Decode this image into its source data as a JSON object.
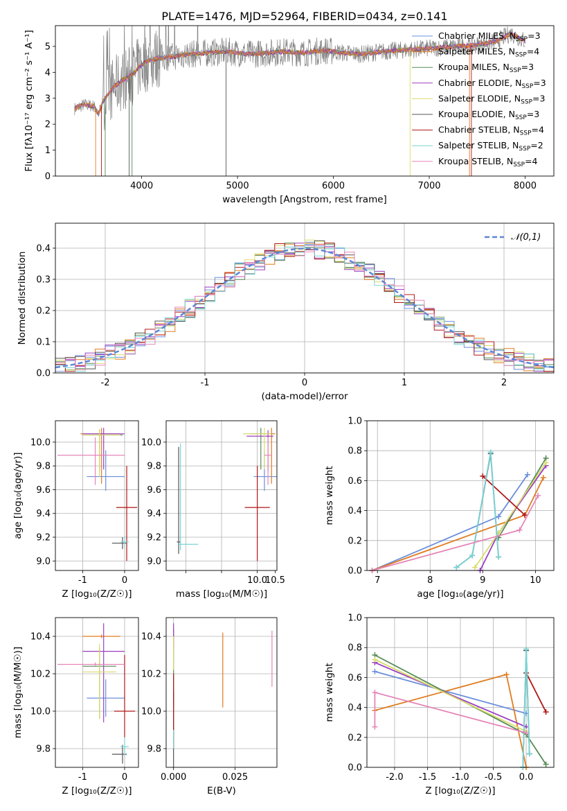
{
  "figure_title": "PLATE=1476, MJD=52964, FIBERID=0434, z=0.141",
  "model_colors": [
    "#6b8fdc",
    "#e07b1e",
    "#558a55",
    "#9b3fc2",
    "#d9dc6a",
    "#555555",
    "#b01515",
    "#79d6d6",
    "#e585b8"
  ],
  "chart_data": [
    {
      "type": "line",
      "id": "spectrum",
      "title": "PLATE=1476, MJD=52964, FIBERID=0434, z=0.141",
      "xlabel": "wavelength [Angstrom, rest frame]",
      "ylabel": "Flux [fλ10⁻¹⁷ erg cm⁻² s⁻¹ A⁻¹]",
      "xlim": [
        3100,
        8300
      ],
      "ylim": [
        0,
        5.8
      ],
      "xticks": [
        4000,
        5000,
        6000,
        7000,
        8000
      ],
      "yticks": [
        0,
        1,
        2,
        3,
        4,
        5
      ],
      "grid": false,
      "legend_position": "top-right",
      "legend": [
        "Chabrier MILES, N_SSP=3",
        "Salpeter MILES, N_SSP=4",
        "Kroupa MILES, N_SSP=3",
        "Chabrier ELODIE, N_SSP=3",
        "Salpeter ELODIE, N_SSP=3",
        "Kroupa ELODIE, N_SSP=3",
        "Chabrier STELIB, N_SSP=4",
        "Salpeter STELIB, N_SSP=2",
        "Kroupa STELIB, N_SSP=4"
      ],
      "legend_colors": [
        "#6b8fdc",
        "#e07b1e",
        "#558a55",
        "#9b3fc2",
        "#d9dc6a",
        "#555555",
        "#b01515",
        "#79d6d6",
        "#e585b8"
      ],
      "model_trend": {
        "x": [
          3300,
          3400,
          3500,
          3550,
          3600,
          3700,
          3800,
          3900,
          4000,
          4100,
          4300,
          4500,
          4700,
          4900,
          5100,
          5300,
          5500,
          5700,
          5900,
          6100,
          6300,
          6500,
          6700,
          6900,
          7100,
          7300,
          7500,
          7700,
          7850,
          8000
        ],
        "y": [
          2.6,
          2.75,
          2.7,
          2.4,
          2.9,
          3.4,
          3.7,
          3.9,
          4.3,
          4.5,
          4.6,
          4.7,
          4.75,
          4.8,
          4.7,
          4.75,
          4.8,
          4.75,
          4.85,
          4.75,
          4.7,
          4.8,
          4.85,
          4.9,
          4.95,
          5.0,
          5.05,
          5.2,
          5.5,
          5.2
        ]
      }
    },
    {
      "type": "histogram",
      "id": "residuals",
      "xlabel": "(data-model)/error",
      "ylabel": "Normed distribution",
      "xlim": [
        -2.5,
        2.5
      ],
      "ylim": [
        0,
        0.48
      ],
      "xticks": [
        -2,
        -1,
        0,
        1,
        2
      ],
      "yticks": [
        0.0,
        0.1,
        0.2,
        0.3,
        0.4
      ],
      "grid": true,
      "legend_position": "top-right",
      "legend": [
        "𝒩(0,1)"
      ],
      "curve": "normal pdf, mean 0, sd 1",
      "bin_width": 0.1
    },
    {
      "type": "scatter",
      "id": "age_vs_Z",
      "xlabel": "Z [log₁₀(Z/Z☉)]",
      "ylabel": "age  [log₁₀(age/yr)]",
      "xlim": [
        -1.65,
        0.33
      ],
      "ylim": [
        8.92,
        10.18
      ],
      "xticks": [
        -1,
        0
      ],
      "yticks": [
        9.0,
        9.2,
        9.4,
        9.6,
        9.8,
        10.0
      ],
      "grid": true,
      "points": [
        {
          "model": 0,
          "x": -0.45,
          "xerr": [
            0.45,
            0.45
          ],
          "y": 9.71,
          "yerr": [
            0.12,
            0.22
          ]
        },
        {
          "model": 1,
          "x": -0.55,
          "xerr": [
            0.5,
            0.45
          ],
          "y": 10.07,
          "yerr": [
            0.42,
            0.05
          ]
        },
        {
          "model": 2,
          "x": -0.6,
          "xerr": [
            0.4,
            0.55
          ],
          "y": 10.06,
          "yerr": [
            0.3,
            0.05
          ]
        },
        {
          "model": 3,
          "x": -0.5,
          "xerr": [
            0.5,
            0.5
          ],
          "y": 10.07,
          "yerr": [
            0.3,
            0.05
          ]
        },
        {
          "model": 4,
          "x": -0.6,
          "xerr": [
            0.4,
            0.5
          ],
          "y": 10.06,
          "yerr": [
            0.35,
            0.05
          ]
        },
        {
          "model": 5,
          "x": -0.05,
          "xerr": [
            0.25,
            0.1
          ],
          "y": 9.15,
          "yerr": [
            0.05,
            0.05
          ]
        },
        {
          "model": 6,
          "x": 0.05,
          "xerr": [
            0.25,
            0.25
          ],
          "y": 9.45,
          "yerr": [
            0.45,
            0.35
          ]
        },
        {
          "model": 7,
          "x": 0.0,
          "xerr": [
            0.1,
            0.1
          ],
          "y": 9.16,
          "yerr": [
            0.05,
            0.05
          ]
        },
        {
          "model": 8,
          "x": -0.7,
          "xerr": [
            0.9,
            0.7
          ],
          "y": 9.89,
          "yerr": [
            0.25,
            0.15
          ]
        }
      ]
    },
    {
      "type": "scatter",
      "id": "age_vs_mass",
      "xlabel": "mass [log₁₀(M/M☉)]",
      "ylabel": "",
      "xlim": [
        7.45,
        10.55
      ],
      "ylim": [
        8.92,
        10.18
      ],
      "xticks": [
        8.0,
        9.0,
        10.0
      ],
      "xtick_labels": [
        "",
        "",
        "10.0"
      ],
      "extra_xticks": [
        10.5
      ],
      "yticks": [
        9.0,
        9.2,
        9.4,
        9.6,
        9.8,
        10.0
      ],
      "grid": true,
      "points": [
        {
          "model": 0,
          "x": 10.2,
          "xerr": [
            0.3,
            0.35
          ],
          "y": 9.71,
          "yerr": [
            0.12,
            0.22
          ]
        },
        {
          "model": 1,
          "x": 10.4,
          "xerr": [
            0.15,
            0.1
          ],
          "y": 10.07,
          "yerr": [
            0.42,
            0.05
          ]
        },
        {
          "model": 2,
          "x": 10.1,
          "xerr": [
            0.3,
            0.3
          ],
          "y": 10.07,
          "yerr": [
            0.3,
            0.05
          ]
        },
        {
          "model": 3,
          "x": 10.3,
          "xerr": [
            0.6,
            0.15
          ],
          "y": 10.05,
          "yerr": [
            0.3,
            0.05
          ]
        },
        {
          "model": 4,
          "x": 10.2,
          "xerr": [
            0.6,
            0.2
          ],
          "y": 10.07,
          "yerr": [
            0.3,
            0.05
          ]
        },
        {
          "model": 5,
          "x": 7.8,
          "xerr": [
            0.05,
            0.05
          ],
          "y": 9.16,
          "yerr": [
            0.1,
            0.8
          ]
        },
        {
          "model": 6,
          "x": 10.0,
          "xerr": [
            0.35,
            0.35
          ],
          "y": 9.45,
          "yerr": [
            0.45,
            0.35
          ]
        },
        {
          "model": 7,
          "x": 7.85,
          "xerr": [
            0.05,
            0.5
          ],
          "y": 9.14,
          "yerr": [
            0.05,
            0.85
          ]
        },
        {
          "model": 8,
          "x": 10.3,
          "xerr": [
            0.1,
            0.1
          ],
          "y": 9.89,
          "yerr": [
            0.25,
            0.15
          ]
        }
      ]
    },
    {
      "type": "line",
      "id": "massweight_vs_age",
      "xlabel": "age  [log₁₀(age/yr)]",
      "ylabel": "mass weight",
      "xlim": [
        6.8,
        10.35
      ],
      "ylim": [
        0,
        1.0
      ],
      "xticks": [
        7,
        8,
        9,
        10
      ],
      "yticks": [
        0.0,
        0.2,
        0.4,
        0.6,
        0.8,
        1.0
      ],
      "grid": true,
      "series": [
        {
          "model": 0,
          "x": [
            6.9,
            9.3,
            9.85
          ],
          "y": [
            0.0,
            0.36,
            0.64
          ]
        },
        {
          "model": 1,
          "x": [
            6.9,
            9.8,
            10.15
          ],
          "y": [
            0.0,
            0.37,
            0.62
          ]
        },
        {
          "model": 2,
          "x": [
            9.3,
            10.2
          ],
          "y": [
            0.22,
            0.75
          ]
        },
        {
          "model": 3,
          "x": [
            8.95,
            9.3,
            10.2
          ],
          "y": [
            0.0,
            0.25,
            0.7
          ]
        },
        {
          "model": 4,
          "x": [
            8.85,
            9.3,
            10.2
          ],
          "y": [
            0.02,
            0.25,
            0.72
          ]
        },
        {
          "model": 5,
          "x": [
            8.5,
            8.8,
            9.15,
            9.3
          ],
          "y": [
            0.02,
            0.1,
            0.78,
            0.09
          ]
        },
        {
          "model": 6,
          "x": [
            9.0,
            9.8
          ],
          "y": [
            0.63,
            0.37
          ]
        },
        {
          "model": 7,
          "x": [
            8.5,
            8.8,
            9.15,
            9.3
          ],
          "y": [
            0.02,
            0.1,
            0.79,
            0.09
          ]
        },
        {
          "model": 8,
          "x": [
            6.9,
            9.7,
            10.05
          ],
          "y": [
            0.0,
            0.27,
            0.5
          ]
        }
      ]
    },
    {
      "type": "scatter",
      "id": "mass_vs_Z",
      "xlabel": "Z [log₁₀(Z/Z☉)]",
      "ylabel": "mass [log₁₀(M/M☉)]",
      "xlim": [
        -1.65,
        0.33
      ],
      "ylim": [
        9.7,
        10.5
      ],
      "xticks": [
        -1,
        0
      ],
      "yticks": [
        9.8,
        10.0,
        10.2,
        10.4
      ],
      "grid": true,
      "points": [
        {
          "model": 0,
          "x": -0.45,
          "xerr": [
            0.45,
            0.45
          ],
          "y": 10.07,
          "yerr": [
            0.1,
            0.1
          ]
        },
        {
          "model": 1,
          "x": -0.55,
          "xerr": [
            0.45,
            0.45
          ],
          "y": 10.4,
          "yerr": [
            0.01,
            0.01
          ]
        },
        {
          "model": 2,
          "x": -0.6,
          "xerr": [
            0.4,
            0.4
          ],
          "y": 10.24,
          "yerr": [
            0.28,
            0.1
          ]
        },
        {
          "model": 3,
          "x": -0.5,
          "xerr": [
            0.5,
            0.5
          ],
          "y": 10.32,
          "yerr": [
            0.38,
            0.15
          ]
        },
        {
          "model": 4,
          "x": -0.6,
          "xerr": [
            0.4,
            0.4
          ],
          "y": 10.21,
          "yerr": [
            0.25,
            0.15
          ]
        },
        {
          "model": 5,
          "x": -0.05,
          "xerr": [
            0.25,
            0.1
          ],
          "y": 9.77,
          "yerr": [
            0.05,
            0.05
          ]
        },
        {
          "model": 6,
          "x": 0.0,
          "xerr": [
            0.25,
            0.25
          ],
          "y": 10.0,
          "yerr": [
            0.14,
            0.3
          ]
        },
        {
          "model": 7,
          "x": 0.0,
          "xerr": [
            0.1,
            0.1
          ],
          "y": 9.81,
          "yerr": [
            0.05,
            0.05
          ]
        },
        {
          "model": 8,
          "x": -0.7,
          "xerr": [
            0.9,
            0.7
          ],
          "y": 10.25,
          "yerr": [
            0.01,
            0.01
          ]
        }
      ]
    },
    {
      "type": "scatter",
      "id": "mass_vs_ebv",
      "xlabel": "E(B-V)",
      "ylabel": "",
      "xlim": [
        -0.003,
        0.042
      ],
      "ylim": [
        9.7,
        10.5
      ],
      "xticks": [
        0.0,
        0.025
      ],
      "yticks": [
        9.8,
        10.0,
        10.2,
        10.4
      ],
      "grid": true,
      "points": [
        {
          "model": 0,
          "x": 0.0,
          "y": 10.07,
          "yerr": [
            0.05,
            0.05
          ]
        },
        {
          "model": 1,
          "x": 0.02,
          "y": 10.22,
          "yerr": [
            0.2,
            0.2
          ]
        },
        {
          "model": 2,
          "x": 0.0,
          "y": 10.24,
          "yerr": [
            0.2,
            0.2
          ]
        },
        {
          "model": 3,
          "x": 0.0,
          "y": 10.4,
          "yerr": [
            0.07,
            0.07
          ]
        },
        {
          "model": 4,
          "x": 0.0,
          "y": 10.3,
          "yerr": [
            0.08,
            0.1
          ]
        },
        {
          "model": 5,
          "x": 0.0,
          "y": 9.9,
          "yerr": [
            0.2,
            0.2
          ]
        },
        {
          "model": 6,
          "x": 0.0,
          "y": 10.0,
          "yerr": [
            0.2,
            0.2
          ]
        },
        {
          "model": 7,
          "x": 0.0,
          "y": 9.85,
          "yerr": [
            0.05,
            0.05
          ]
        },
        {
          "model": 8,
          "x": 0.04,
          "y": 10.28,
          "yerr": [
            0.15,
            0.15
          ]
        }
      ]
    },
    {
      "type": "line",
      "id": "massweight_vs_Z",
      "xlabel": "Z [log₁₀(Z/Z☉)]",
      "ylabel": "mass weight",
      "xlim": [
        -2.42,
        0.42
      ],
      "ylim": [
        0,
        1.0
      ],
      "xticks": [
        -2.0,
        -1.5,
        -1.0,
        -0.5,
        0.0
      ],
      "yticks": [
        0.0,
        0.2,
        0.4,
        0.6,
        0.8,
        1.0
      ],
      "grid": true,
      "series": [
        {
          "model": 0,
          "x": [
            -2.3,
            0.0
          ],
          "y": [
            0.64,
            0.36
          ]
        },
        {
          "model": 1,
          "x": [
            -2.3,
            -0.3,
            0.0
          ],
          "y": [
            0.38,
            0.62,
            0.0
          ]
        },
        {
          "model": 2,
          "x": [
            -2.3,
            0.0,
            0.3
          ],
          "y": [
            0.75,
            0.22,
            0.02
          ]
        },
        {
          "model": 3,
          "x": [
            -2.3,
            0.0
          ],
          "y": [
            0.7,
            0.27
          ]
        },
        {
          "model": 4,
          "x": [
            -2.3,
            0.0
          ],
          "y": [
            0.72,
            0.24
          ]
        },
        {
          "model": 5,
          "x": [
            -0.05,
            0.0,
            0.05
          ],
          "y": [
            0.0,
            0.78,
            0.09
          ]
        },
        {
          "model": 6,
          "x": [
            0.0,
            0.3
          ],
          "y": [
            0.63,
            0.37
          ]
        },
        {
          "model": 7,
          "x": [
            -0.05,
            0.0,
            0.05
          ],
          "y": [
            0.0,
            0.79,
            0.09
          ]
        },
        {
          "model": 8,
          "x": [
            -2.3,
            -2.3,
            0.0
          ],
          "y": [
            0.27,
            0.5,
            0.23
          ]
        }
      ]
    }
  ]
}
